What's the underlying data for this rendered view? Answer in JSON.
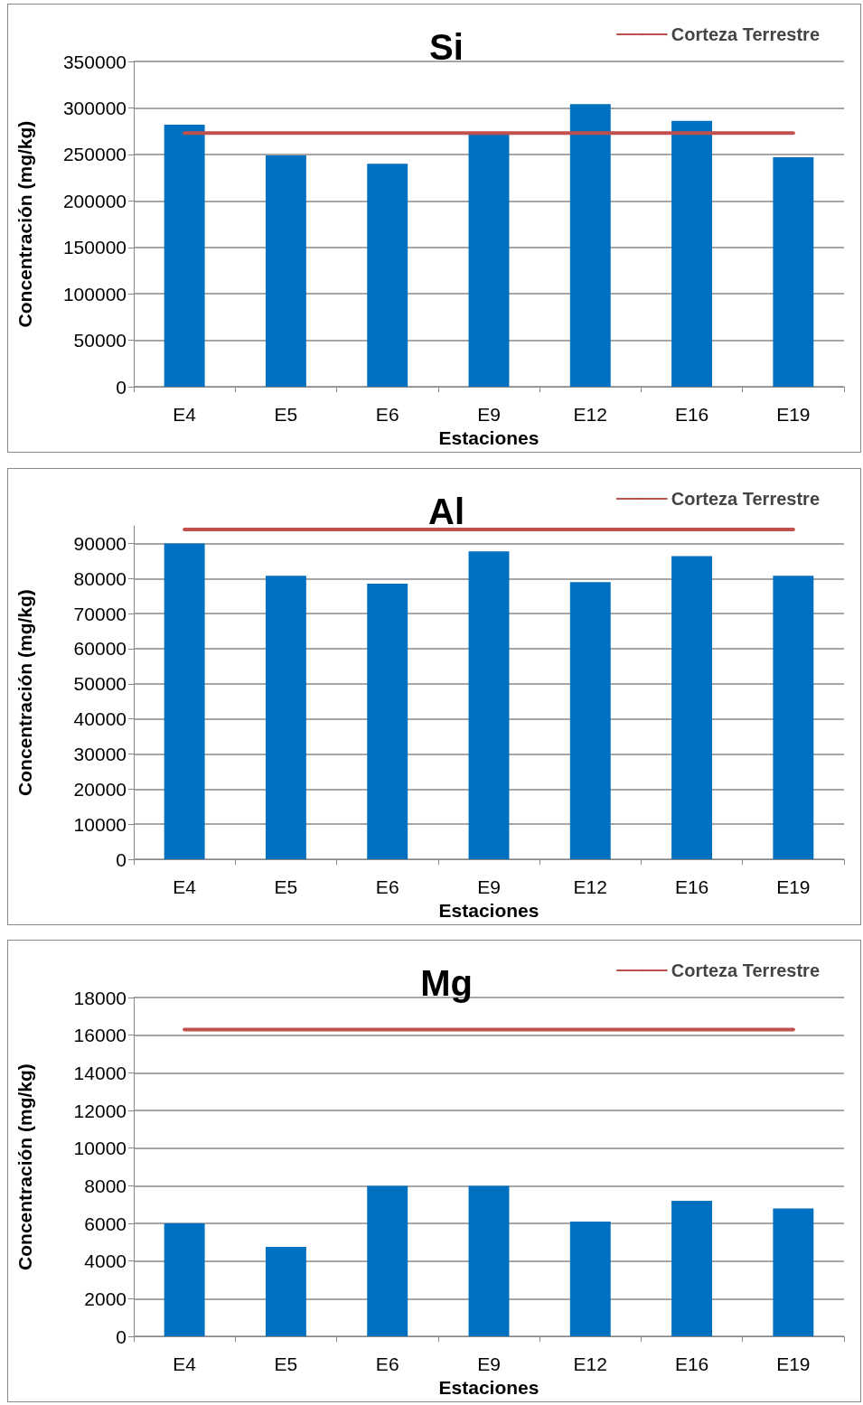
{
  "chart_data": [
    {
      "type": "bar",
      "title": "Si",
      "xlabel": "Estaciones",
      "ylabel": "Concentración (mg/kg)",
      "categories": [
        "E4",
        "E5",
        "E6",
        "E9",
        "E12",
        "E16",
        "E19"
      ],
      "series": [
        {
          "color": "#0070c0",
          "values": [
            282000,
            249000,
            240000,
            274000,
            304000,
            286000,
            247000
          ]
        },
        {
          "type": "line",
          "name": "Corteza Terrestre",
          "color": "#c0504d",
          "marker": "none",
          "values": [
            273000,
            273000,
            273000,
            273000,
            273000,
            273000,
            273000
          ]
        }
      ],
      "ylim": [
        0,
        350000
      ],
      "yticks": [
        0,
        50000,
        100000,
        150000,
        200000,
        250000,
        300000,
        350000
      ],
      "grid": "y",
      "legend": "top right"
    },
    {
      "type": "bar",
      "title": "Al",
      "xlabel": "Estaciones",
      "ylabel": "Concentración (mg/kg)",
      "categories": [
        "E4",
        "E5",
        "E6",
        "E9",
        "E12",
        "E16",
        "E19"
      ],
      "series": [
        {
          "color": "#0070c0",
          "values": [
            90000,
            80800,
            78500,
            87700,
            79000,
            86400,
            80800
          ]
        },
        {
          "type": "line",
          "name": "Corteza Terrestre",
          "color": "#c0504d",
          "marker": "none",
          "values": [
            94000,
            94000,
            94000,
            94000,
            94000,
            94000,
            94000
          ]
        }
      ],
      "ylim": [
        0,
        95000
      ],
      "yticks": [
        0,
        10000,
        20000,
        30000,
        40000,
        50000,
        60000,
        70000,
        80000,
        90000
      ],
      "grid": "y",
      "legend": "top right"
    },
    {
      "type": "bar",
      "title": "Mg",
      "xlabel": "Estaciones",
      "ylabel": "Concentración (mg/kg)",
      "categories": [
        "E4",
        "E5",
        "E6",
        "E9",
        "E12",
        "E16",
        "E19"
      ],
      "series": [
        {
          "color": "#0070c0",
          "values": [
            6000,
            4750,
            8000,
            8000,
            6100,
            7200,
            6800
          ]
        },
        {
          "type": "line",
          "name": "Corteza Terrestre",
          "color": "#c0504d",
          "marker": "none",
          "values": [
            16300,
            16300,
            16300,
            16300,
            16300,
            16300,
            16300
          ]
        }
      ],
      "ylim": [
        0,
        18000
      ],
      "yticks": [
        0,
        2000,
        4000,
        6000,
        8000,
        10000,
        12000,
        14000,
        16000,
        18000
      ],
      "grid": "y",
      "legend": "top right"
    }
  ]
}
